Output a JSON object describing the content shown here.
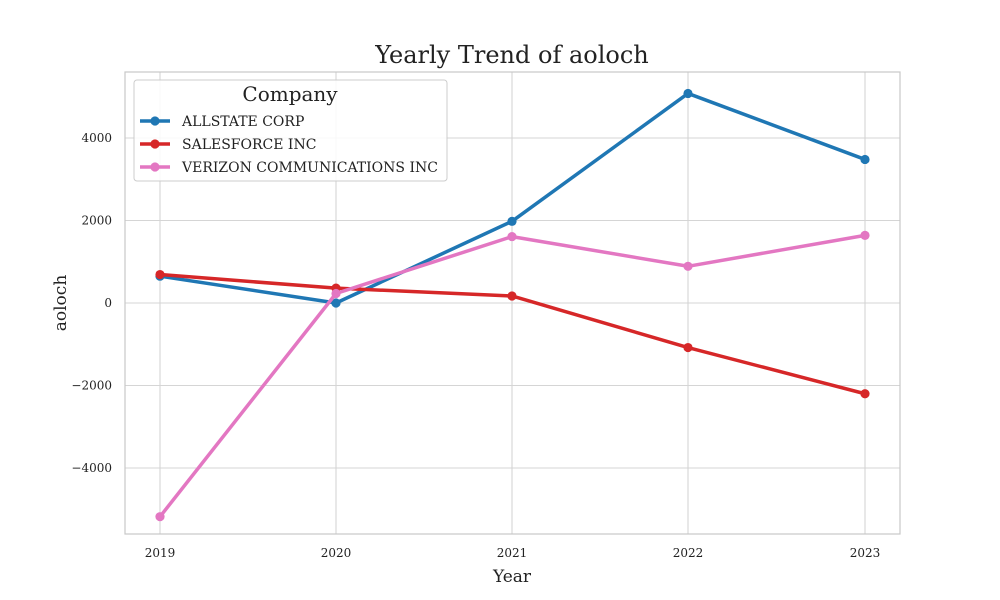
{
  "chart_data": {
    "type": "line",
    "title": "Yearly Trend of aoloch",
    "xlabel": "Year",
    "ylabel": "aoloch",
    "x": [
      "2019",
      "2020",
      "2021",
      "2022",
      "2023"
    ],
    "yticks": [
      -4000,
      -2000,
      0,
      2000,
      4000
    ],
    "ylim": [
      -5600,
      5600
    ],
    "grid": true,
    "legend": {
      "title": "Company",
      "placement": "top-left"
    },
    "series": [
      {
        "name": "ALLSTATE CORP",
        "color": "#1f77b4",
        "values": [
          650,
          0,
          1980,
          5080,
          3480
        ]
      },
      {
        "name": "SALESFORCE INC",
        "color": "#d62728",
        "values": [
          690,
          360,
          170,
          -1080,
          -2200
        ]
      },
      {
        "name": "VERIZON COMMUNICATIONS INC",
        "color": "#e377c2",
        "values": [
          -5180,
          230,
          1610,
          890,
          1640
        ]
      }
    ]
  }
}
